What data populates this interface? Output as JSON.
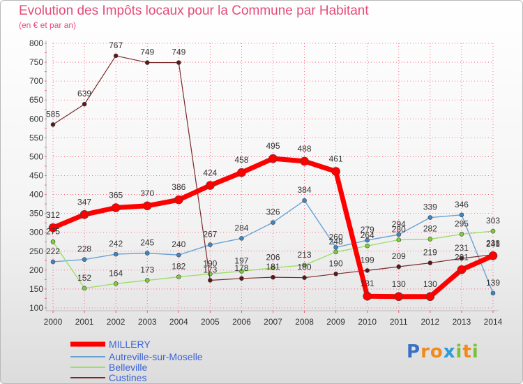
{
  "header": {
    "title": "Evolution des Impôts locaux pour la Commune par Habitant",
    "subtitle": "(en € et par an)"
  },
  "brand": {
    "letters": [
      "P",
      "r",
      "o",
      "x",
      "i",
      "t",
      "i"
    ],
    "colors": [
      "#3a6fc4",
      "#f08a1c",
      "#f08a1c",
      "#2d9bd8",
      "#7cbf3c",
      "#f08a1c",
      "#7cbf3c"
    ]
  },
  "colors": {
    "title": "#e64b7a",
    "grid": "#ff4d6a",
    "axis": "#bbbbbb"
  },
  "chart_data": {
    "type": "line",
    "title": "Evolution des Impôts locaux pour la Commune par Habitant",
    "subtitle": "(en € et par an)",
    "xlabel": "",
    "ylabel": "",
    "ylim": [
      100,
      800
    ],
    "yticks": [
      100,
      150,
      200,
      250,
      300,
      350,
      400,
      450,
      500,
      550,
      600,
      650,
      700,
      750,
      800
    ],
    "x": [
      2000,
      2001,
      2002,
      2003,
      2004,
      2005,
      2006,
      2007,
      2008,
      2009,
      2010,
      2011,
      2012,
      2013,
      2014
    ],
    "legend_position": "bottom-left",
    "series": [
      {
        "name": "MILLERY",
        "color": "#ff0000",
        "dot": "#ff0000",
        "width": 7,
        "r": 6,
        "values": [
          312,
          347,
          365,
          370,
          386,
          424,
          458,
          495,
          488,
          461,
          131,
          130,
          130,
          201,
          238
        ]
      },
      {
        "name": "Autreville-sur-Moselle",
        "color": "#6aa2d4",
        "dot": "#3d86c6",
        "width": 1.4,
        "r": 3,
        "values": [
          222,
          228,
          242,
          245,
          240,
          267,
          284,
          326,
          384,
          260,
          279,
          294,
          339,
          346,
          139
        ]
      },
      {
        "name": "Belleville",
        "color": "#9ede6a",
        "dot": "#7ccd3a",
        "width": 1.4,
        "r": 3,
        "values": [
          275,
          152,
          164,
          173,
          182,
          190,
          197,
          206,
          213,
          248,
          264,
          280,
          282,
          295,
          303
        ]
      },
      {
        "name": "Custines",
        "color": "#7a2a2a",
        "dot": "#5a1818",
        "width": 1.2,
        "r": 3,
        "values": [
          585,
          639,
          767,
          749,
          749,
          173,
          178,
          181,
          180,
          190,
          199,
          209,
          219,
          231,
          241
        ]
      }
    ]
  }
}
